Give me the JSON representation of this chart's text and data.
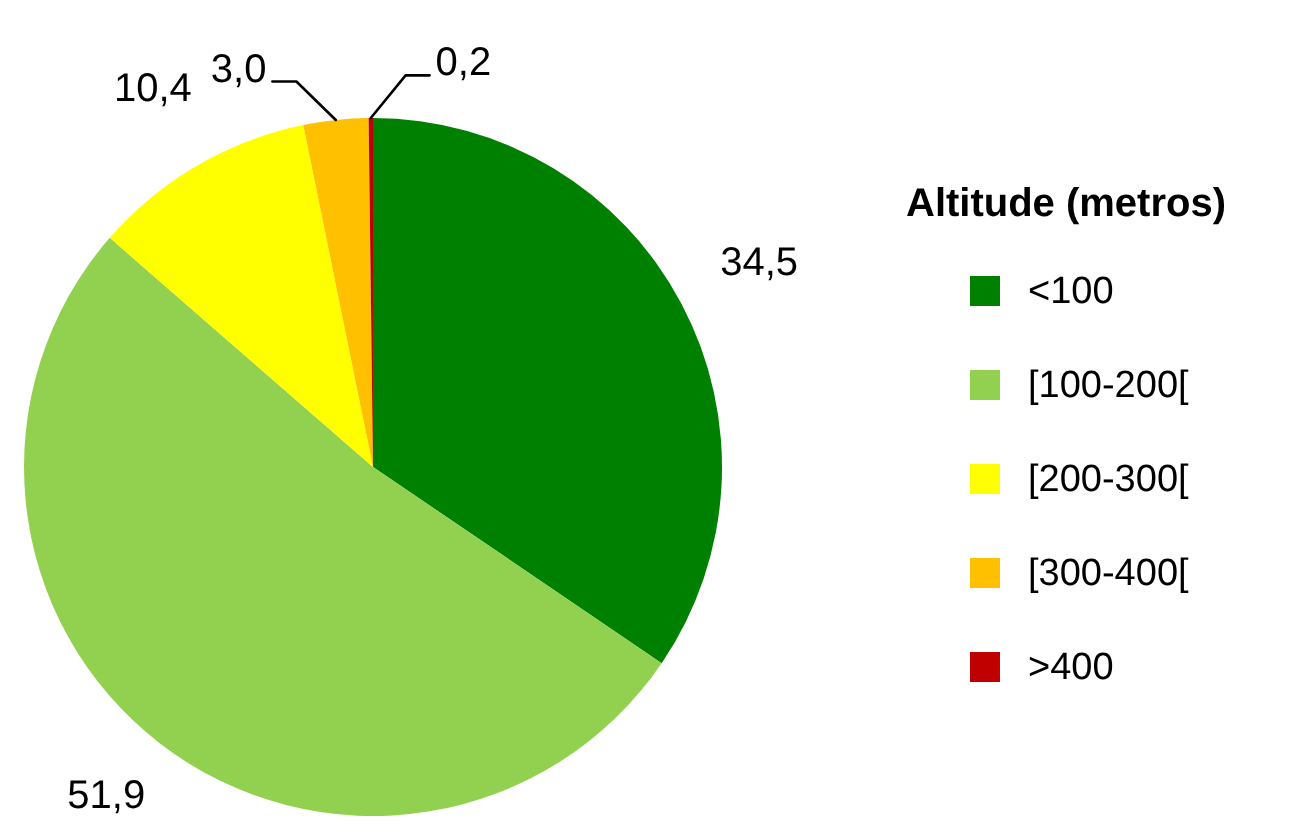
{
  "chart_data": {
    "type": "pie",
    "legend_title": "Altitude (metros)",
    "legend": "right",
    "categories": [
      "<100",
      "[100-200[",
      "[200-300[",
      "[300-400[",
      ">400"
    ],
    "values": [
      34.5,
      51.9,
      10.4,
      3.0,
      0.2
    ],
    "value_labels": [
      "34,5",
      "51,9",
      "10,4",
      "3,0",
      "0,2"
    ],
    "colors": [
      "#008000",
      "#92d050",
      "#ffff00",
      "#ffc000",
      "#c00000"
    ]
  }
}
